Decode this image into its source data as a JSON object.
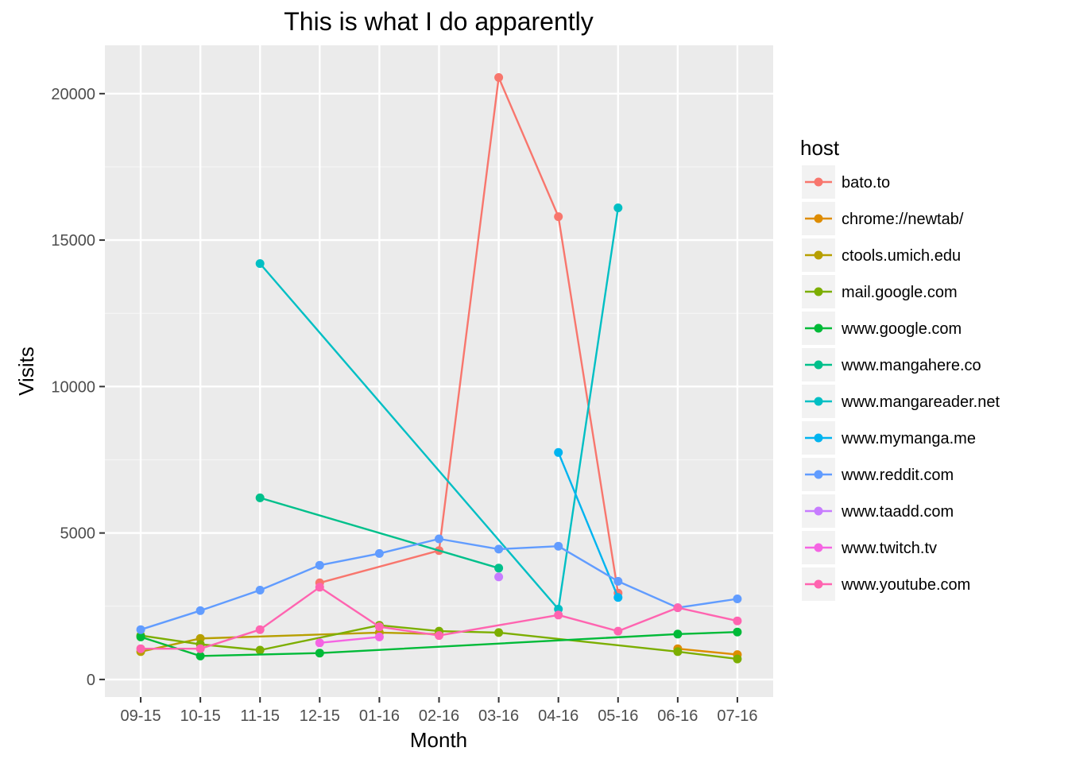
{
  "chart_data": {
    "type": "line",
    "title": "This is what I do apparently",
    "xlabel": "Month",
    "ylabel": "Visits",
    "categories": [
      "09-15",
      "10-15",
      "11-15",
      "12-15",
      "01-16",
      "02-16",
      "03-16",
      "04-16",
      "05-16",
      "06-16",
      "07-16"
    ],
    "ylim": [
      -600,
      21650
    ],
    "yticks": [
      0,
      5000,
      10000,
      15000,
      20000
    ],
    "grid": true,
    "legend": {
      "title": "host",
      "position": "right"
    },
    "series": [
      {
        "name": "bato.to",
        "color": "#F8766D",
        "values": [
          null,
          null,
          null,
          3300,
          null,
          4400,
          20550,
          15800,
          2950,
          null,
          null
        ]
      },
      {
        "name": "chrome://newtab/",
        "color": "#DE8C00",
        "values": [
          null,
          null,
          null,
          null,
          null,
          null,
          null,
          null,
          null,
          1050,
          850
        ]
      },
      {
        "name": "ctools.umich.edu",
        "color": "#B79F00",
        "values": [
          950,
          1400,
          null,
          null,
          1600,
          1550,
          null,
          null,
          null,
          null,
          null
        ]
      },
      {
        "name": "mail.google.com",
        "color": "#7CAE00",
        "values": [
          1500,
          1200,
          1000,
          null,
          1850,
          1650,
          1600,
          null,
          null,
          950,
          700
        ]
      },
      {
        "name": "www.google.com",
        "color": "#00BA38",
        "values": [
          1450,
          800,
          null,
          900,
          null,
          null,
          null,
          null,
          null,
          1550,
          1620
        ]
      },
      {
        "name": "www.mangahere.co",
        "color": "#00C08B",
        "values": [
          null,
          null,
          6200,
          null,
          null,
          null,
          3800,
          null,
          null,
          null,
          null
        ]
      },
      {
        "name": "www.mangareader.net",
        "color": "#00BFC4",
        "values": [
          null,
          null,
          14200,
          null,
          null,
          null,
          null,
          2400,
          16100,
          null,
          null
        ]
      },
      {
        "name": "www.mymanga.me",
        "color": "#00B4F0",
        "values": [
          null,
          null,
          null,
          null,
          null,
          null,
          null,
          7750,
          2800,
          null,
          null
        ]
      },
      {
        "name": "www.reddit.com",
        "color": "#619CFF",
        "values": [
          1700,
          2350,
          3050,
          3900,
          4300,
          4800,
          4450,
          4550,
          3350,
          2450,
          2750
        ]
      },
      {
        "name": "www.taadd.com",
        "color": "#C77CFF",
        "values": [
          null,
          null,
          null,
          null,
          null,
          null,
          3500,
          null,
          null,
          null,
          null
        ]
      },
      {
        "name": "www.twitch.tv",
        "color": "#F564E3",
        "values": [
          null,
          null,
          null,
          1250,
          1450,
          null,
          null,
          null,
          null,
          null,
          null
        ]
      },
      {
        "name": "www.youtube.com",
        "color": "#FF64B0",
        "values": [
          1050,
          1050,
          1700,
          3150,
          1800,
          1500,
          null,
          2200,
          1650,
          2450,
          2000
        ]
      }
    ]
  }
}
